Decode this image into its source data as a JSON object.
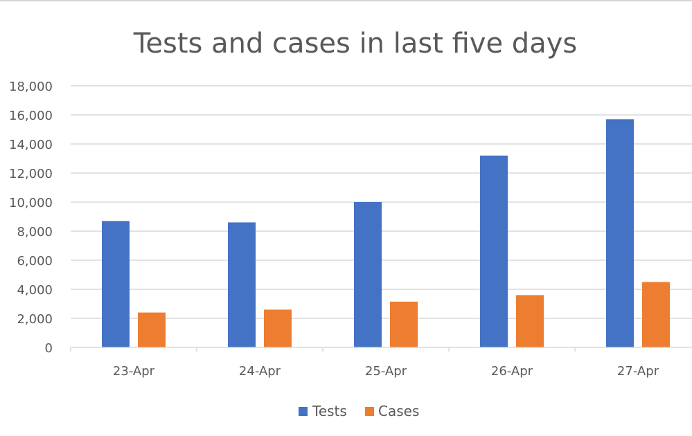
{
  "chart_data": {
    "type": "bar",
    "title": "Tests and cases in last five days",
    "xlabel": "",
    "ylabel": "",
    "categories": [
      "23-Apr",
      "24-Apr",
      "25-Apr",
      "26-Apr",
      "27-Apr"
    ],
    "series": [
      {
        "name": "Tests",
        "color": "#4472c4",
        "values": [
          8700,
          8600,
          10000,
          13200,
          15700
        ]
      },
      {
        "name": "Cases",
        "color": "#ed7d31",
        "values": [
          2400,
          2600,
          3150,
          3600,
          4500
        ]
      }
    ],
    "ylim": [
      0,
      18000
    ],
    "yticks": [
      "0",
      "2,000",
      "4,000",
      "6,000",
      "8,000",
      "10,000",
      "12,000",
      "14,000",
      "16,000",
      "18,000"
    ],
    "ytick_values": [
      0,
      2000,
      4000,
      6000,
      8000,
      10000,
      12000,
      14000,
      16000,
      18000
    ],
    "grid": true,
    "legend_position": "bottom"
  }
}
